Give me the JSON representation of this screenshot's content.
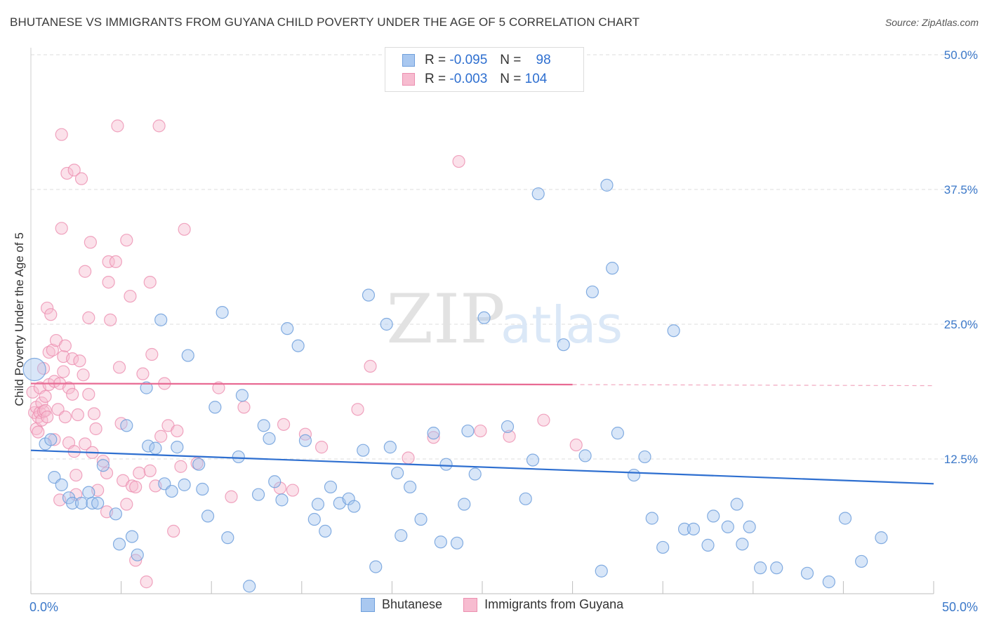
{
  "header": {
    "title": "BHUTANESE VS IMMIGRANTS FROM GUYANA CHILD POVERTY UNDER THE AGE OF 5 CORRELATION CHART",
    "source": "Source: ZipAtlas.com"
  },
  "legend": {
    "rows": [
      {
        "r_label": "R =",
        "r_value": "-0.095",
        "n_label": "N =",
        "n_value": "98"
      },
      {
        "r_label": "R =",
        "r_value": "-0.003",
        "n_label": "N =",
        "n_value": "104"
      }
    ]
  },
  "watermark": {
    "zip": "ZIP",
    "atlas": "atlas"
  },
  "colors": {
    "bhutanese_fill": "#a9c8f0",
    "bhutanese_stroke": "#6f9fdc",
    "bhutanese_line": "#2e6fd0",
    "guyana_fill": "#f7bcd0",
    "guyana_stroke": "#ec8fb0",
    "guyana_line": "#e86a93",
    "tick_label": "#3b78c9",
    "grid": "#dedede"
  },
  "chart_data": {
    "type": "scatter",
    "title": "BHUTANESE VS IMMIGRANTS FROM GUYANA CHILD POVERTY UNDER THE AGE OF 5 CORRELATION CHART",
    "xlabel": "",
    "ylabel": "Child Poverty Under the Age of 5",
    "xlim": [
      0,
      50
    ],
    "ylim": [
      0,
      50
    ],
    "x_ticks": [
      "0.0%",
      "50.0%"
    ],
    "y_ticks": [
      "12.5%",
      "25.0%",
      "37.5%",
      "50.0%"
    ],
    "y_tick_values": [
      12.5,
      25.0,
      37.5,
      50.0
    ],
    "grid": true,
    "legend_position": "top-center",
    "series": [
      {
        "name": "Bhutanese",
        "r": -0.095,
        "n": 98,
        "trend": {
          "x": [
            0,
            50
          ],
          "y": [
            13.3,
            10.2
          ]
        },
        "points": [
          [
            0.2,
            20.8
          ],
          [
            0.8,
            13.9
          ],
          [
            1.1,
            14.3
          ],
          [
            1.3,
            10.8
          ],
          [
            1.7,
            10.1
          ],
          [
            2.1,
            8.9
          ],
          [
            2.3,
            8.4
          ],
          [
            2.8,
            8.4
          ],
          [
            3.2,
            9.4
          ],
          [
            3.4,
            8.4
          ],
          [
            3.7,
            8.4
          ],
          [
            4.0,
            11.9
          ],
          [
            4.7,
            7.4
          ],
          [
            4.9,
            4.6
          ],
          [
            5.3,
            15.6
          ],
          [
            5.6,
            5.3
          ],
          [
            5.9,
            3.6
          ],
          [
            6.4,
            19.1
          ],
          [
            6.5,
            13.7
          ],
          [
            6.9,
            13.5
          ],
          [
            7.2,
            25.4
          ],
          [
            7.4,
            10.2
          ],
          [
            7.8,
            9.5
          ],
          [
            8.1,
            13.6
          ],
          [
            8.5,
            10.1
          ],
          [
            8.7,
            22.1
          ],
          [
            9.3,
            12.0
          ],
          [
            9.5,
            9.7
          ],
          [
            9.8,
            7.2
          ],
          [
            10.2,
            17.3
          ],
          [
            10.6,
            26.1
          ],
          [
            10.9,
            5.2
          ],
          [
            11.5,
            12.7
          ],
          [
            11.7,
            18.4
          ],
          [
            12.1,
            0.7
          ],
          [
            12.6,
            9.2
          ],
          [
            12.9,
            15.6
          ],
          [
            13.2,
            14.4
          ],
          [
            13.5,
            10.4
          ],
          [
            13.9,
            8.7
          ],
          [
            14.2,
            24.6
          ],
          [
            14.8,
            23.0
          ],
          [
            15.2,
            14.2
          ],
          [
            15.7,
            6.9
          ],
          [
            15.9,
            8.3
          ],
          [
            16.3,
            5.8
          ],
          [
            16.6,
            9.9
          ],
          [
            17.1,
            8.4
          ],
          [
            17.6,
            8.8
          ],
          [
            17.9,
            8.1
          ],
          [
            18.4,
            13.3
          ],
          [
            18.7,
            27.7
          ],
          [
            19.1,
            2.5
          ],
          [
            19.7,
            25.0
          ],
          [
            19.9,
            13.6
          ],
          [
            20.3,
            11.2
          ],
          [
            20.5,
            5.4
          ],
          [
            21.0,
            9.9
          ],
          [
            21.6,
            6.9
          ],
          [
            22.3,
            14.9
          ],
          [
            22.7,
            4.8
          ],
          [
            23.0,
            12.0
          ],
          [
            23.6,
            4.7
          ],
          [
            24.0,
            8.3
          ],
          [
            24.2,
            15.1
          ],
          [
            24.6,
            11.1
          ],
          [
            25.1,
            25.6
          ],
          [
            26.4,
            15.5
          ],
          [
            27.4,
            8.8
          ],
          [
            27.8,
            12.4
          ],
          [
            28.1,
            37.1
          ],
          [
            29.5,
            23.1
          ],
          [
            30.7,
            12.8
          ],
          [
            31.1,
            28.0
          ],
          [
            31.6,
            2.1
          ],
          [
            31.9,
            37.9
          ],
          [
            32.2,
            30.2
          ],
          [
            32.5,
            14.9
          ],
          [
            33.4,
            11.0
          ],
          [
            34.0,
            12.7
          ],
          [
            34.4,
            7.0
          ],
          [
            35.0,
            4.3
          ],
          [
            35.6,
            24.4
          ],
          [
            36.2,
            6.0
          ],
          [
            36.7,
            6.0
          ],
          [
            37.5,
            4.5
          ],
          [
            37.8,
            7.2
          ],
          [
            38.6,
            6.2
          ],
          [
            39.1,
            8.3
          ],
          [
            39.4,
            4.6
          ],
          [
            39.8,
            6.2
          ],
          [
            40.4,
            2.4
          ],
          [
            41.3,
            2.4
          ],
          [
            43.0,
            1.9
          ],
          [
            44.2,
            1.1
          ],
          [
            45.1,
            7.0
          ],
          [
            46.0,
            3.0
          ],
          [
            47.1,
            5.2
          ]
        ]
      },
      {
        "name": "Immigrants from Guyana",
        "r": -0.003,
        "n": 104,
        "trend": {
          "x": [
            0,
            30
          ],
          "y": [
            19.5,
            19.4
          ]
        },
        "trend_extension": {
          "x": [
            30,
            50
          ],
          "y": [
            19.4,
            19.3
          ]
        },
        "points": [
          [
            0.1,
            18.7
          ],
          [
            0.2,
            16.8
          ],
          [
            0.3,
            17.3
          ],
          [
            0.3,
            15.3
          ],
          [
            0.4,
            16.4
          ],
          [
            0.4,
            15.0
          ],
          [
            0.5,
            19.1
          ],
          [
            0.5,
            16.8
          ],
          [
            0.6,
            17.7
          ],
          [
            0.6,
            16.1
          ],
          [
            0.7,
            20.9
          ],
          [
            0.7,
            16.9
          ],
          [
            0.8,
            18.3
          ],
          [
            0.8,
            17.0
          ],
          [
            0.9,
            16.4
          ],
          [
            0.9,
            26.5
          ],
          [
            1.0,
            19.4
          ],
          [
            1.0,
            22.4
          ],
          [
            1.1,
            25.9
          ],
          [
            1.2,
            22.6
          ],
          [
            1.3,
            19.7
          ],
          [
            1.3,
            14.3
          ],
          [
            1.4,
            23.5
          ],
          [
            1.5,
            17.1
          ],
          [
            1.6,
            8.7
          ],
          [
            1.6,
            19.5
          ],
          [
            1.7,
            33.9
          ],
          [
            1.7,
            42.6
          ],
          [
            1.8,
            20.6
          ],
          [
            1.8,
            22.0
          ],
          [
            1.9,
            16.4
          ],
          [
            1.9,
            23.0
          ],
          [
            2.0,
            39.0
          ],
          [
            2.1,
            19.1
          ],
          [
            2.1,
            14.0
          ],
          [
            2.3,
            21.8
          ],
          [
            2.3,
            18.5
          ],
          [
            2.4,
            13.2
          ],
          [
            2.4,
            39.3
          ],
          [
            2.5,
            11.0
          ],
          [
            2.5,
            9.2
          ],
          [
            2.6,
            16.6
          ],
          [
            2.7,
            21.6
          ],
          [
            2.8,
            38.5
          ],
          [
            2.9,
            20.3
          ],
          [
            3.0,
            13.9
          ],
          [
            3.0,
            29.9
          ],
          [
            3.2,
            18.5
          ],
          [
            3.2,
            25.6
          ],
          [
            3.3,
            32.6
          ],
          [
            3.4,
            13.1
          ],
          [
            3.5,
            16.7
          ],
          [
            3.6,
            15.3
          ],
          [
            3.7,
            9.6
          ],
          [
            4.0,
            12.3
          ],
          [
            4.2,
            11.2
          ],
          [
            4.2,
            7.6
          ],
          [
            4.3,
            30.8
          ],
          [
            4.3,
            28.9
          ],
          [
            4.4,
            25.4
          ],
          [
            4.7,
            30.8
          ],
          [
            4.8,
            43.4
          ],
          [
            4.9,
            21.0
          ],
          [
            5.0,
            15.8
          ],
          [
            5.1,
            10.5
          ],
          [
            5.3,
            32.8
          ],
          [
            5.3,
            8.3
          ],
          [
            5.5,
            27.6
          ],
          [
            5.6,
            10.0
          ],
          [
            5.8,
            9.9
          ],
          [
            5.8,
            3.1
          ],
          [
            6.0,
            11.2
          ],
          [
            6.2,
            20.4
          ],
          [
            6.4,
            1.1
          ],
          [
            6.6,
            28.9
          ],
          [
            6.6,
            11.4
          ],
          [
            6.7,
            22.2
          ],
          [
            6.9,
            10.0
          ],
          [
            7.1,
            43.4
          ],
          [
            7.2,
            14.6
          ],
          [
            7.4,
            19.5
          ],
          [
            7.6,
            15.6
          ],
          [
            7.9,
            5.8
          ],
          [
            8.1,
            15.1
          ],
          [
            8.3,
            11.8
          ],
          [
            8.5,
            33.8
          ],
          [
            9.2,
            12.1
          ],
          [
            10.4,
            19.1
          ],
          [
            11.1,
            9.0
          ],
          [
            11.8,
            17.3
          ],
          [
            13.8,
            9.8
          ],
          [
            14.0,
            15.7
          ],
          [
            14.5,
            9.6
          ],
          [
            15.2,
            14.8
          ],
          [
            16.1,
            13.6
          ],
          [
            18.1,
            17.1
          ],
          [
            18.8,
            21.1
          ],
          [
            20.9,
            12.6
          ],
          [
            22.3,
            14.5
          ],
          [
            23.7,
            40.1
          ],
          [
            24.9,
            15.1
          ],
          [
            26.5,
            14.6
          ],
          [
            28.4,
            16.1
          ],
          [
            30.2,
            13.8
          ]
        ]
      }
    ]
  },
  "bottom_legend": {
    "items": [
      {
        "label": "Bhutanese"
      },
      {
        "label": "Immigrants from Guyana"
      }
    ]
  }
}
